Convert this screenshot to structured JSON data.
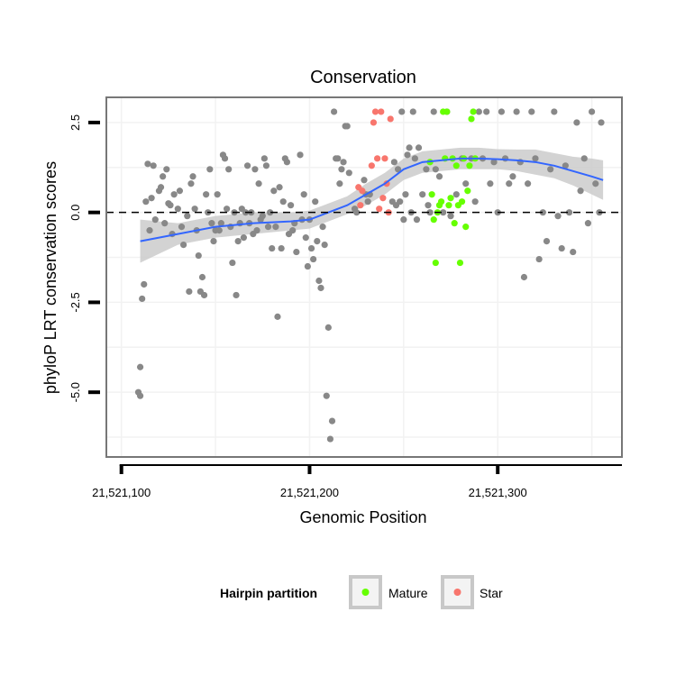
{
  "chart_data": {
    "type": "scatter",
    "title": "Conservation",
    "xlabel": "Genomic Position",
    "ylabel": "phyloP LRT conservation scores",
    "xlim": [
      21521092,
      21521366
    ],
    "ylim": [
      -6.8,
      3.2
    ],
    "x_ticks": [
      21521100,
      21521200,
      21521300
    ],
    "x_tick_labels": [
      "21,521,100",
      "21,521,200",
      "21,521,300"
    ],
    "y_ticks": [
      -5.0,
      -2.5,
      0.0,
      2.5
    ],
    "y_tick_labels": [
      "-5.0",
      "-2.5",
      "0.0",
      "2.5"
    ],
    "grid": true,
    "reference_line": {
      "y": 0,
      "style": "dashed"
    },
    "legend": {
      "title": "Hairpin partition",
      "position": "bottom",
      "entries": [
        {
          "label": "Mature",
          "color": "#66ff00"
        },
        {
          "label": "Star",
          "color": "#f8766d"
        }
      ]
    },
    "colors": {
      "other": "#888888",
      "Mature": "#66ff00",
      "Star": "#f8766d",
      "smooth": "#3366ff",
      "band": "#c8c8c8"
    },
    "series": [
      {
        "group": "other",
        "points": [
          [
            21521110,
            -4.3
          ],
          [
            21521111,
            -2.4
          ],
          [
            21521112,
            -2.0
          ],
          [
            21521109,
            -5.0
          ],
          [
            21521110,
            -5.1
          ],
          [
            21521113,
            0.3
          ],
          [
            21521114,
            1.35
          ],
          [
            21521115,
            -0.5
          ],
          [
            21521116,
            0.4
          ],
          [
            21521117,
            1.3
          ],
          [
            21521118,
            -0.2
          ],
          [
            21521120,
            0.6
          ],
          [
            21521121,
            0.7
          ],
          [
            21521122,
            1.0
          ],
          [
            21521123,
            -0.3
          ],
          [
            21521124,
            1.2
          ],
          [
            21521125,
            0.25
          ],
          [
            21521126,
            0.2
          ],
          [
            21521127,
            -0.6
          ],
          [
            21521128,
            0.5
          ],
          [
            21521130,
            0.1
          ],
          [
            21521131,
            0.6
          ],
          [
            21521132,
            -0.4
          ],
          [
            21521133,
            -0.9
          ],
          [
            21521135,
            -0.1
          ],
          [
            21521136,
            -2.2
          ],
          [
            21521137,
            0.8
          ],
          [
            21521138,
            1.0
          ],
          [
            21521139,
            0.1
          ],
          [
            21521140,
            -0.5
          ],
          [
            21521141,
            -1.2
          ],
          [
            21521142,
            -2.2
          ],
          [
            21521143,
            -1.8
          ],
          [
            21521144,
            -2.3
          ],
          [
            21521145,
            0.5
          ],
          [
            21521146,
            0.0
          ],
          [
            21521147,
            1.2
          ],
          [
            21521148,
            -0.3
          ],
          [
            21521149,
            -0.8
          ],
          [
            21521150,
            -0.5
          ],
          [
            21521151,
            0.5
          ],
          [
            21521152,
            -0.5
          ],
          [
            21521153,
            -0.3
          ],
          [
            21521154,
            1.6
          ],
          [
            21521155,
            1.5
          ],
          [
            21521156,
            0.1
          ],
          [
            21521157,
            1.2
          ],
          [
            21521158,
            -0.4
          ],
          [
            21521159,
            -1.4
          ],
          [
            21521160,
            0.0
          ],
          [
            21521161,
            -2.3
          ],
          [
            21521162,
            -0.8
          ],
          [
            21521163,
            -0.3
          ],
          [
            21521164,
            0.1
          ],
          [
            21521165,
            -0.7
          ],
          [
            21521166,
            0.0
          ],
          [
            21521167,
            1.3
          ],
          [
            21521168,
            -0.3
          ],
          [
            21521169,
            0.0
          ],
          [
            21521170,
            -0.6
          ],
          [
            21521171,
            1.2
          ],
          [
            21521172,
            -0.5
          ],
          [
            21521173,
            0.8
          ],
          [
            21521174,
            -0.2
          ],
          [
            21521175,
            -0.1
          ],
          [
            21521176,
            1.5
          ],
          [
            21521177,
            1.3
          ],
          [
            21521178,
            -0.4
          ],
          [
            21521179,
            0.0
          ],
          [
            21521180,
            -1.0
          ],
          [
            21521181,
            0.6
          ],
          [
            21521182,
            -0.4
          ],
          [
            21521183,
            -2.9
          ],
          [
            21521184,
            0.7
          ],
          [
            21521185,
            -1.0
          ],
          [
            21521186,
            0.3
          ],
          [
            21521187,
            1.5
          ],
          [
            21521188,
            1.4
          ],
          [
            21521189,
            -0.6
          ],
          [
            21521190,
            0.2
          ],
          [
            21521191,
            -0.5
          ],
          [
            21521192,
            -0.3
          ],
          [
            21521193,
            -1.1
          ],
          [
            21521195,
            1.6
          ],
          [
            21521196,
            -0.2
          ],
          [
            21521197,
            0.5
          ],
          [
            21521198,
            -0.7
          ],
          [
            21521199,
            -1.5
          ],
          [
            21521200,
            -0.2
          ],
          [
            21521201,
            -1.0
          ],
          [
            21521202,
            -1.3
          ],
          [
            21521203,
            0.3
          ],
          [
            21521204,
            -0.8
          ],
          [
            21521205,
            -1.9
          ],
          [
            21521206,
            -2.1
          ],
          [
            21521207,
            -0.4
          ],
          [
            21521208,
            -0.9
          ],
          [
            21521209,
            -5.1
          ],
          [
            21521210,
            -3.2
          ],
          [
            21521211,
            -6.3
          ],
          [
            21521212,
            -5.8
          ],
          [
            21521213,
            2.8
          ],
          [
            21521214,
            1.5
          ],
          [
            21521215,
            1.5
          ],
          [
            21521216,
            0.8
          ],
          [
            21521217,
            1.2
          ],
          [
            21521218,
            1.4
          ],
          [
            21521219,
            2.4
          ],
          [
            21521220,
            2.4
          ],
          [
            21521221,
            1.1
          ],
          [
            21521224,
            0.1
          ],
          [
            21521225,
            0.0
          ],
          [
            21521229,
            0.9
          ],
          [
            21521230,
            0.5
          ],
          [
            21521231,
            0.3
          ],
          [
            21521232,
            0.5
          ],
          [
            21521244,
            0.3
          ],
          [
            21521245,
            1.4
          ],
          [
            21521246,
            0.2
          ],
          [
            21521247,
            1.2
          ],
          [
            21521248,
            0.3
          ],
          [
            21521249,
            2.8
          ],
          [
            21521250,
            -0.2
          ],
          [
            21521251,
            0.5
          ],
          [
            21521252,
            1.6
          ],
          [
            21521253,
            1.8
          ],
          [
            21521254,
            0.0
          ],
          [
            21521255,
            2.8
          ],
          [
            21521256,
            1.5
          ],
          [
            21521257,
            -0.2
          ],
          [
            21521258,
            1.8
          ],
          [
            21521260,
            0.5
          ],
          [
            21521262,
            1.2
          ],
          [
            21521263,
            0.2
          ],
          [
            21521264,
            0.0
          ],
          [
            21521266,
            2.8
          ],
          [
            21521267,
            1.2
          ],
          [
            21521269,
            1.0
          ],
          [
            21521271,
            0.0
          ],
          [
            21521273,
            2.8
          ],
          [
            21521275,
            -0.1
          ],
          [
            21521278,
            0.5
          ],
          [
            21521281,
            1.5
          ],
          [
            21521283,
            0.8
          ],
          [
            21521286,
            1.5
          ],
          [
            21521288,
            0.3
          ],
          [
            21521290,
            2.8
          ],
          [
            21521292,
            1.5
          ],
          [
            21521294,
            2.8
          ],
          [
            21521296,
            0.8
          ],
          [
            21521298,
            1.4
          ],
          [
            21521300,
            0.0
          ],
          [
            21521302,
            2.8
          ],
          [
            21521304,
            1.5
          ],
          [
            21521306,
            0.8
          ],
          [
            21521308,
            1.0
          ],
          [
            21521310,
            2.8
          ],
          [
            21521312,
            1.4
          ],
          [
            21521314,
            -1.8
          ],
          [
            21521316,
            0.8
          ],
          [
            21521318,
            2.8
          ],
          [
            21521320,
            1.5
          ],
          [
            21521322,
            -1.3
          ],
          [
            21521324,
            0.0
          ],
          [
            21521326,
            -0.8
          ],
          [
            21521328,
            1.2
          ],
          [
            21521330,
            2.8
          ],
          [
            21521332,
            -0.1
          ],
          [
            21521334,
            -1.0
          ],
          [
            21521336,
            1.3
          ],
          [
            21521338,
            0.0
          ],
          [
            21521340,
            -1.1
          ],
          [
            21521342,
            2.5
          ],
          [
            21521344,
            0.6
          ],
          [
            21521346,
            1.5
          ],
          [
            21521348,
            -0.3
          ],
          [
            21521350,
            2.8
          ],
          [
            21521352,
            0.8
          ],
          [
            21521354,
            0.0
          ],
          [
            21521355,
            2.5
          ]
        ]
      },
      {
        "group": "Star",
        "points": [
          [
            21521226,
            0.7
          ],
          [
            21521227,
            0.2
          ],
          [
            21521228,
            0.6
          ],
          [
            21521233,
            1.3
          ],
          [
            21521234,
            2.5
          ],
          [
            21521235,
            2.8
          ],
          [
            21521236,
            1.5
          ],
          [
            21521237,
            0.1
          ],
          [
            21521238,
            2.8
          ],
          [
            21521239,
            0.4
          ],
          [
            21521240,
            1.5
          ],
          [
            21521241,
            0.8
          ],
          [
            21521242,
            0.0
          ],
          [
            21521243,
            2.6
          ]
        ]
      },
      {
        "group": "Mature",
        "points": [
          [
            21521264,
            1.4
          ],
          [
            21521265,
            0.5
          ],
          [
            21521266,
            -0.2
          ],
          [
            21521267,
            -1.4
          ],
          [
            21521268,
            0.0
          ],
          [
            21521269,
            0.2
          ],
          [
            21521270,
            0.3
          ],
          [
            21521271,
            2.8
          ],
          [
            21521272,
            1.5
          ],
          [
            21521273,
            2.8
          ],
          [
            21521274,
            0.2
          ],
          [
            21521275,
            0.4
          ],
          [
            21521276,
            1.5
          ],
          [
            21521277,
            -0.3
          ],
          [
            21521278,
            1.3
          ],
          [
            21521279,
            0.2
          ],
          [
            21521280,
            -1.4
          ],
          [
            21521281,
            0.3
          ],
          [
            21521282,
            1.5
          ],
          [
            21521283,
            -0.4
          ],
          [
            21521284,
            0.6
          ],
          [
            21521285,
            1.3
          ],
          [
            21521286,
            2.6
          ],
          [
            21521287,
            2.8
          ],
          [
            21521288,
            1.5
          ]
        ]
      }
    ],
    "smooth": {
      "x": [
        21521110,
        21521130,
        21521150,
        21521170,
        21521190,
        21521200,
        21521210,
        21521220,
        21521230,
        21521240,
        21521250,
        21521260,
        21521270,
        21521280,
        21521290,
        21521300,
        21521310,
        21521320,
        21521330,
        21521340,
        21521350,
        21521356
      ],
      "y": [
        -0.8,
        -0.6,
        -0.4,
        -0.3,
        -0.25,
        -0.2,
        0.0,
        0.2,
        0.5,
        0.8,
        1.2,
        1.4,
        1.45,
        1.5,
        1.5,
        1.48,
        1.45,
        1.4,
        1.3,
        1.15,
        1.0,
        0.9
      ],
      "lower": [
        -1.4,
        -0.9,
        -0.7,
        -0.6,
        -0.5,
        -0.45,
        -0.25,
        -0.05,
        0.2,
        0.5,
        0.9,
        1.1,
        1.15,
        1.2,
        1.2,
        1.2,
        1.15,
        1.05,
        0.95,
        0.75,
        0.5,
        0.35
      ],
      "upper": [
        -0.2,
        -0.3,
        -0.1,
        0.0,
        0.0,
        0.05,
        0.25,
        0.45,
        0.8,
        1.1,
        1.5,
        1.7,
        1.75,
        1.8,
        1.8,
        1.76,
        1.75,
        1.75,
        1.65,
        1.55,
        1.5,
        1.45
      ]
    }
  }
}
